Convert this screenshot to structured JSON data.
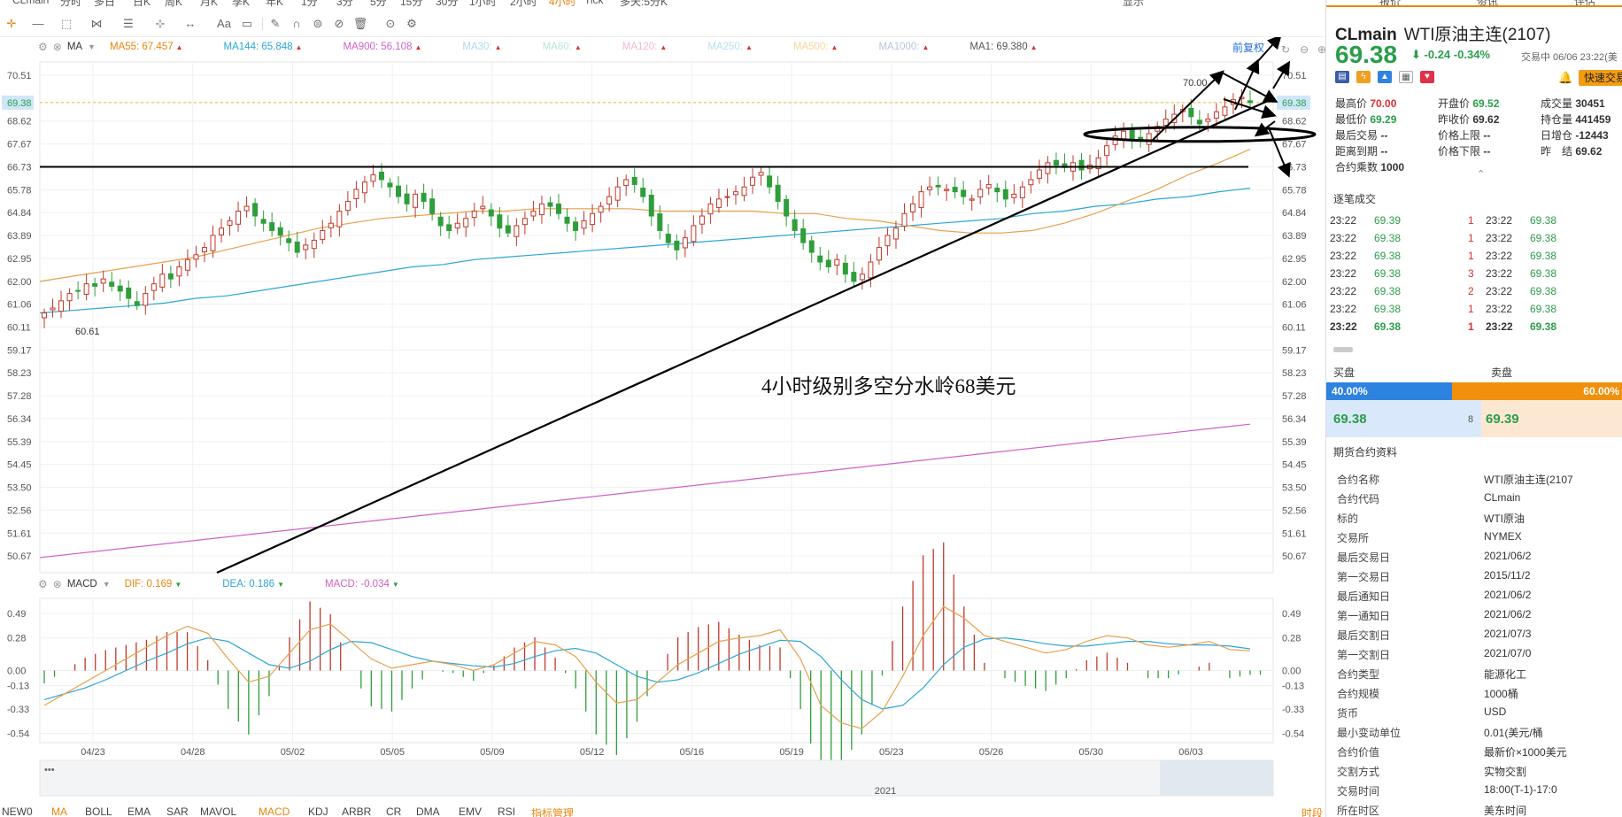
{
  "top_menu": [
    "CLmain",
    "分时",
    "多日",
    "日K",
    "周K",
    "月K",
    "季K",
    "年K",
    "1分",
    "3分",
    "5分",
    "15分",
    "30分",
    "1小时",
    "2小时",
    "4小时",
    "Tick",
    "多天:5分K"
  ],
  "top_menu_active": "4小时",
  "top_right": [
    "显示"
  ],
  "indicator_main": {
    "label": "MA",
    "items": [
      {
        "text": "MA55: 67.457",
        "color": "#e8850c"
      },
      {
        "text": "MA144: 65.848",
        "color": "#2ba6d6"
      },
      {
        "text": "MA900: 56.108",
        "color": "#d060c8"
      },
      {
        "text": "MA30:",
        "color": "#b0d8ee"
      },
      {
        "text": "MA60:",
        "color": "#b8e6d8"
      },
      {
        "text": "MA120:",
        "color": "#f2b8c8"
      },
      {
        "text": "MA250:",
        "color": "#b8e0ee"
      },
      {
        "text": "MA500:",
        "color": "#f5d59a"
      },
      {
        "text": "MA1000:",
        "color": "#b8c4da"
      },
      {
        "text": "MA1: 69.380",
        "color": "#555555"
      }
    ]
  },
  "indicator_sub": {
    "label": "MACD",
    "items": [
      {
        "text": "DIF: 0.169",
        "color": "#e8850c"
      },
      {
        "text": "DEA: 0.186",
        "color": "#2ba6d6"
      },
      {
        "text": "MACD: -0.034",
        "color": "#d060c8"
      }
    ]
  },
  "front_adjust_label": "前复权",
  "annotation": "4小时级别多空分水岭68美元",
  "chart_data": {
    "type": "candlestick",
    "main_y_ticks": [
      "70.51",
      "69.38",
      "68.62",
      "67.67",
      "66.73",
      "65.78",
      "64.84",
      "63.89",
      "62.95",
      "62.00",
      "61.06",
      "60.11",
      "59.17",
      "58.23",
      "57.28",
      "56.34",
      "55.39",
      "54.45",
      "53.50",
      "52.56",
      "51.61",
      "50.67"
    ],
    "main_ylim": [
      49.9,
      71.0
    ],
    "current_price": 69.38,
    "high_label": "70.00",
    "low_label": "60.61",
    "macd_y_ticks": [
      "0.49",
      "0.28",
      "0.00",
      "-0.13",
      "-0.33",
      "-0.54"
    ],
    "macd_ylim": [
      -0.62,
      0.62
    ],
    "x_ticks": [
      "04/23",
      "04/28",
      "05/02",
      "05/05",
      "05/09",
      "05/12",
      "05/16",
      "05/19",
      "05/23",
      "05/26",
      "05/30",
      "06/03"
    ],
    "timeline_label": "2021",
    "close_series": [
      60.7,
      60.9,
      61.2,
      61.5,
      61.6,
      61.9,
      61.8,
      62.1,
      61.8,
      61.6,
      61.3,
      61.0,
      61.5,
      61.9,
      62.3,
      62.1,
      62.6,
      62.9,
      63.1,
      63.4,
      63.9,
      64.2,
      64.5,
      64.9,
      65.1,
      64.7,
      64.4,
      64.1,
      63.9,
      63.6,
      63.2,
      63.5,
      63.7,
      64.1,
      64.4,
      64.9,
      65.3,
      65.8,
      66.1,
      66.4,
      66.2,
      65.9,
      65.5,
      65.2,
      65.6,
      65.3,
      64.8,
      64.3,
      64.1,
      64.4,
      64.6,
      64.9,
      65.1,
      64.7,
      64.2,
      64.0,
      64.3,
      64.6,
      64.9,
      65.2,
      65.1,
      64.8,
      64.4,
      64.1,
      64.5,
      64.8,
      65.1,
      65.5,
      65.9,
      66.2,
      66.0,
      65.5,
      64.7,
      64.1,
      63.6,
      63.3,
      63.8,
      64.3,
      64.7,
      65.2,
      65.4,
      65.5,
      65.7,
      65.9,
      66.3,
      66.5,
      65.9,
      65.3,
      64.7,
      64.1,
      63.6,
      63.2,
      62.8,
      62.6,
      62.9,
      62.3,
      62.0,
      62.3,
      62.8,
      63.4,
      63.9,
      64.2,
      64.8,
      65.2,
      65.7,
      65.9,
      65.9,
      65.8,
      65.7,
      65.5,
      65.4,
      65.8,
      66.0,
      65.7,
      65.4,
      65.6,
      65.9,
      66.2,
      66.6,
      66.9,
      66.8,
      66.7,
      66.9,
      66.6,
      66.8,
      67.1,
      67.6,
      68.0,
      68.2,
      67.9,
      67.8,
      68.1,
      68.4,
      68.7,
      68.9,
      69.1,
      68.8,
      68.5,
      68.7,
      69.0,
      69.2,
      69.5,
      69.6,
      69.38
    ],
    "ma55_series": [
      62.0,
      62.2,
      62.4,
      62.6,
      62.8,
      63.0,
      63.3,
      63.6,
      63.9,
      64.2,
      64.4,
      64.6,
      64.7,
      64.8,
      64.9,
      64.9,
      65.0,
      65.0,
      65.0,
      65.0,
      64.9,
      64.9,
      64.9,
      64.9,
      64.8,
      64.8,
      64.6,
      64.5,
      64.3,
      64.1,
      64.0,
      64.0,
      64.1,
      64.4,
      64.8,
      65.3,
      65.8,
      66.4,
      66.9,
      67.457
    ],
    "ma144_series": [
      60.7,
      60.8,
      60.9,
      61.0,
      61.1,
      61.3,
      61.4,
      61.6,
      61.8,
      62.0,
      62.2,
      62.4,
      62.6,
      62.7,
      62.9,
      63.0,
      63.1,
      63.2,
      63.3,
      63.4,
      63.5,
      63.6,
      63.7,
      63.8,
      63.9,
      64.0,
      64.1,
      64.2,
      64.3,
      64.4,
      64.5,
      64.6,
      64.8,
      64.9,
      65.1,
      65.2,
      65.4,
      65.5,
      65.7,
      65.848
    ],
    "ma900_range": [
      50.6,
      56.108
    ],
    "dif_series": [
      -0.3,
      -0.2,
      -0.1,
      0.0,
      0.1,
      0.2,
      0.3,
      0.38,
      0.32,
      0.1,
      -0.1,
      -0.05,
      0.15,
      0.35,
      0.4,
      0.25,
      0.1,
      0.02,
      0.05,
      0.08,
      0.05,
      0.0,
      0.05,
      0.15,
      0.25,
      0.22,
      0.12,
      -0.1,
      -0.28,
      -0.25,
      -0.1,
      0.05,
      0.15,
      0.25,
      0.28,
      0.3,
      0.35,
      0.1,
      -0.3,
      -0.45,
      -0.5,
      -0.35,
      -0.05,
      0.3,
      0.55,
      0.45,
      0.3,
      0.25,
      0.2,
      0.15,
      0.18,
      0.25,
      0.3,
      0.28,
      0.22,
      0.2,
      0.22,
      0.25,
      0.18,
      0.169
    ],
    "dea_series": [
      -0.25,
      -0.2,
      -0.15,
      -0.08,
      0.0,
      0.08,
      0.15,
      0.23,
      0.28,
      0.25,
      0.15,
      0.05,
      0.02,
      0.08,
      0.18,
      0.25,
      0.24,
      0.18,
      0.12,
      0.08,
      0.06,
      0.04,
      0.03,
      0.06,
      0.12,
      0.17,
      0.19,
      0.15,
      0.05,
      -0.05,
      -0.1,
      -0.08,
      -0.02,
      0.06,
      0.14,
      0.2,
      0.26,
      0.25,
      0.12,
      -0.08,
      -0.25,
      -0.33,
      -0.3,
      -0.15,
      0.05,
      0.2,
      0.27,
      0.28,
      0.26,
      0.23,
      0.21,
      0.21,
      0.23,
      0.25,
      0.25,
      0.23,
      0.22,
      0.22,
      0.21,
      0.186
    ]
  },
  "right_panel": {
    "tabs": [
      "报价",
      "资讯",
      "评估"
    ],
    "symbol": "CLmain",
    "name": "WTI原油主连(2107)",
    "price": "69.38",
    "arrow": "⬇",
    "change": "-0.24",
    "change_pct": "-0.34%",
    "status": "交易中 06/06 23:22(美",
    "quick_trade": "快速交易",
    "stats": [
      {
        "k": "最高价",
        "v": "70.00",
        "c": "red"
      },
      {
        "k": "开盘价",
        "v": "69.52",
        "c": "green"
      },
      {
        "k": "成交量",
        "v": "30451",
        "c": ""
      },
      {
        "k": "最低价",
        "v": "69.29",
        "c": "green"
      },
      {
        "k": "昨收价",
        "v": "69.62",
        "c": ""
      },
      {
        "k": "持仓量",
        "v": "441459",
        "c": ""
      },
      {
        "k": "最后交易",
        "v": "--",
        "c": ""
      },
      {
        "k": "价格上限",
        "v": "--",
        "c": ""
      },
      {
        "k": "日增仓",
        "v": "-12443",
        "c": ""
      },
      {
        "k": "距离到期",
        "v": "--",
        "c": ""
      },
      {
        "k": "价格下限",
        "v": "--",
        "c": ""
      },
      {
        "k": "昨　结",
        "v": "69.62",
        "c": ""
      },
      {
        "k": "合约乘数",
        "v": "1000",
        "c": ""
      }
    ],
    "ticks_title": "逐笔成交",
    "ticks": [
      {
        "t1": "23:22",
        "p1": "69.39",
        "v1": "1",
        "t2": "23:22",
        "p2": "69.38"
      },
      {
        "t1": "23:22",
        "p1": "69.38",
        "v1": "1",
        "t2": "23:22",
        "p2": "69.38"
      },
      {
        "t1": "23:22",
        "p1": "69.38",
        "v1": "1",
        "t2": "23:22",
        "p2": "69.38"
      },
      {
        "t1": "23:22",
        "p1": "69.38",
        "v1": "3",
        "t2": "23:22",
        "p2": "69.38"
      },
      {
        "t1": "23:22",
        "p1": "69.38",
        "v1": "2",
        "t2": "23:22",
        "p2": "69.38"
      },
      {
        "t1": "23:22",
        "p1": "69.38",
        "v1": "1",
        "t2": "23:22",
        "p2": "69.38"
      },
      {
        "t1": "23:22",
        "p1": "69.38",
        "v1": "1",
        "t2": "23:22",
        "p2": "69.38"
      }
    ],
    "book_buy_label": "买盘",
    "book_sell_label": "卖盘",
    "buy_pct": "40.00%",
    "sell_pct": "60.00%",
    "bid": "69.38",
    "bid_size": "8",
    "ask": "69.39",
    "info_title": "期货合约资料",
    "info": [
      {
        "k": "合约名称",
        "v": "WTI原油主连(2107"
      },
      {
        "k": "合约代码",
        "v": "CLmain"
      },
      {
        "k": "标的",
        "v": "WTI原油"
      },
      {
        "k": "交易所",
        "v": "NYMEX"
      },
      {
        "k": "最后交易日",
        "v": "2021/06/2"
      },
      {
        "k": "第一交易日",
        "v": "2015/11/2"
      },
      {
        "k": "最后通知日",
        "v": "2021/06/2"
      },
      {
        "k": "第一通知日",
        "v": "2021/06/2"
      },
      {
        "k": "最后交割日",
        "v": "2021/07/3"
      },
      {
        "k": "第一交割日",
        "v": "2021/07/0"
      },
      {
        "k": "合约类型",
        "v": "能源化工"
      },
      {
        "k": "合约规模",
        "v": "1000桶"
      },
      {
        "k": "货币",
        "v": "USD"
      },
      {
        "k": "最小变动单位",
        "v": "0.01(美元/桶"
      },
      {
        "k": "合约价值",
        "v": "最新价×1000美元"
      },
      {
        "k": "交割方式",
        "v": "实物交割"
      },
      {
        "k": "交易时间",
        "v": "18:00(T-1)-17:0"
      },
      {
        "k": "所在时区",
        "v": "美东时间"
      }
    ]
  },
  "bottom_tabs": [
    "NEW0",
    "MA",
    "BOLL",
    "EMA",
    "SAR",
    "MAVOL",
    "MACD",
    "KDJ",
    "ARBR",
    "CR",
    "DMA",
    "EMV",
    "RSI",
    "指标管理"
  ],
  "bottom_tabs_active": [
    "MA",
    "MACD",
    "指标管理"
  ],
  "bottom_right": "时段"
}
